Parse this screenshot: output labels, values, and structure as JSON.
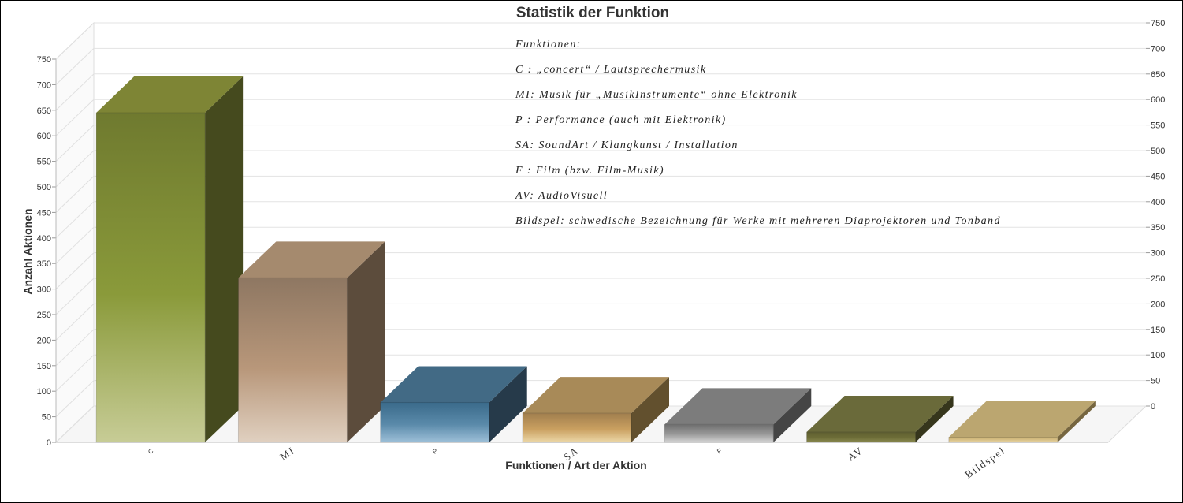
{
  "chart_data": {
    "type": "bar",
    "title": "Statistik der Funktion",
    "xlabel": "Funktionen / Art der Aktion",
    "ylabel": "Anzahl Aktionen",
    "categories": [
      "C",
      "MI",
      "P",
      "SA",
      "F",
      "AV",
      "Bildspel"
    ],
    "values": [
      645,
      322,
      78,
      57,
      35,
      20,
      10
    ],
    "ylim": [
      0,
      750
    ],
    "yticks": [
      0,
      50,
      100,
      150,
      200,
      250,
      300,
      350,
      400,
      450,
      500,
      550,
      600,
      650,
      700,
      750
    ],
    "grid": true,
    "three_d": true,
    "annotations": [
      "Funktionen:",
      "C : „concert“ / Lautsprechermusik",
      "MI: Musik für „MusikInstrumente“ ohne Elektronik",
      "P : Performance (auch mit Elektronik)",
      "SA: SoundArt / Klangkunst / Installation",
      "F : Film (bzw. Film-Musik)",
      "AV: AudioVisuell",
      "Bildspel: schwedische Bezeichnung für Werke mit mehreren Diaprojektoren und Tonband"
    ],
    "colors": [
      {
        "top": "#7e8535",
        "front_top": "#6f7a2f",
        "front_mid": "#8a9a3a",
        "front_bottom": "#c7cc96",
        "side": "#454a1e"
      },
      {
        "top": "#a58a6e",
        "front_top": "#8e7762",
        "front_mid": "#b8977a",
        "front_bottom": "#e0d0c0",
        "side": "#5c4c3c"
      },
      {
        "top": "#426a85",
        "front_top": "#3a6a8a",
        "front_mid": "#5a8aaa",
        "front_bottom": "#9ec0d8",
        "side": "#263a4a"
      },
      {
        "top": "#a88a58",
        "front_top": "#a07e4e",
        "front_mid": "#caa060",
        "front_bottom": "#ecd8a8",
        "side": "#62502e"
      },
      {
        "top": "#7c7c7c",
        "front_top": "#6e6e6e",
        "front_mid": "#9a9a9a",
        "front_bottom": "#d4d4d4",
        "side": "#454545"
      },
      {
        "top": "#6a6a3a",
        "front_top": "#5e5e30",
        "front_mid": "#6e6e38",
        "front_bottom": "#8a8a50",
        "side": "#36361c"
      },
      {
        "top": "#bba670",
        "front_top": "#c8b070",
        "front_mid": "#d8c088",
        "front_bottom": "#ead8a8",
        "side": "#766640"
      }
    ]
  }
}
